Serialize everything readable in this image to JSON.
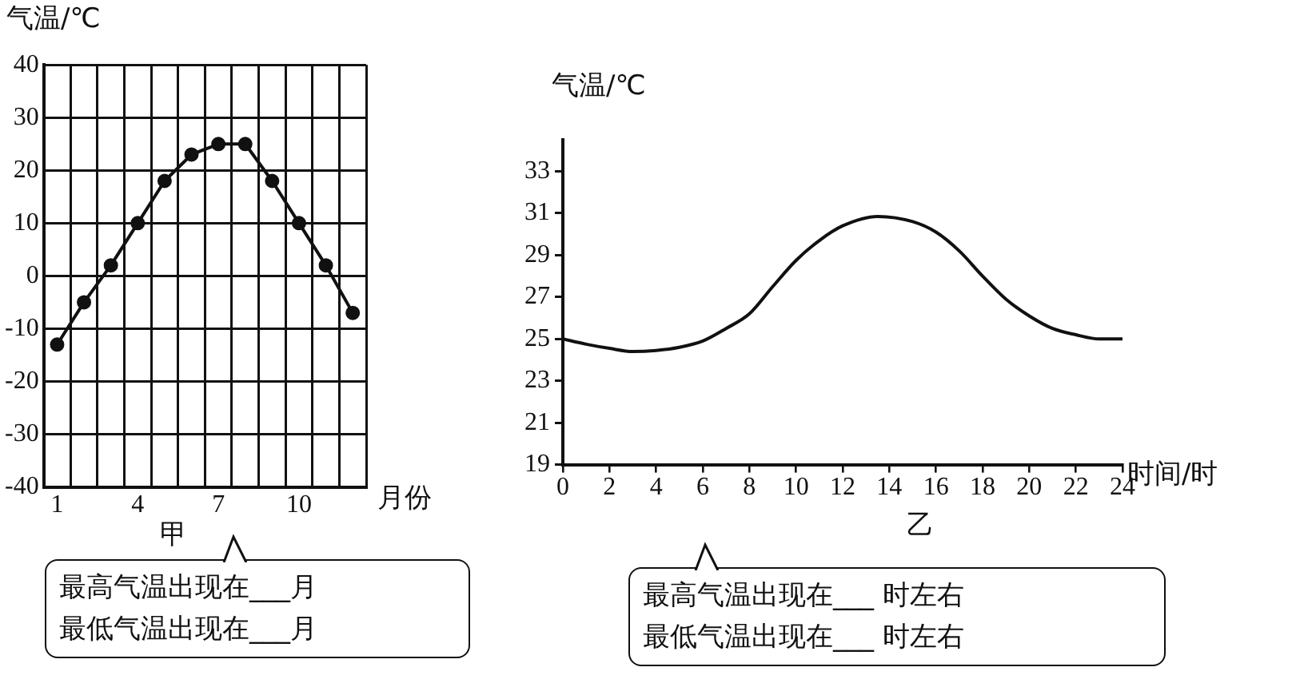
{
  "chart_data": [
    {
      "type": "line",
      "ylabel": "气温/℃",
      "xlabel": "月份",
      "categories": [
        "1",
        null,
        null,
        "4",
        null,
        null,
        "7",
        null,
        null,
        "10",
        null,
        null
      ],
      "values": [
        -13,
        -5,
        2,
        10,
        18,
        23,
        25,
        25,
        18,
        10,
        2,
        -7
      ],
      "color": "#111111",
      "marker": "circle",
      "ylim": [
        -40,
        40
      ],
      "yticks": [
        -40,
        -30,
        -20,
        -10,
        0,
        10,
        20,
        30,
        40
      ],
      "grid": true,
      "annotations": [
        "甲",
        "最高气温出现在___月",
        "最低气温出现在___月"
      ]
    },
    {
      "type": "line",
      "ylabel": "气温/℃",
      "xlabel": "时间/时",
      "x": [
        0,
        1,
        2,
        3,
        4,
        5,
        6,
        7,
        8,
        9,
        10,
        11,
        12,
        13.5,
        15,
        16,
        17,
        18,
        19,
        20,
        21,
        22,
        23,
        24
      ],
      "values": [
        25.0,
        24.75,
        24.55,
        24.4,
        24.45,
        24.6,
        24.9,
        25.5,
        26.2,
        27.5,
        28.75,
        29.7,
        30.4,
        30.85,
        30.6,
        30.1,
        29.2,
        28.0,
        26.9,
        26.1,
        25.5,
        25.2,
        25.0,
        25.0
      ],
      "color": "#111111",
      "xlim": [
        0,
        24
      ],
      "xticks": [
        0,
        2,
        4,
        6,
        8,
        10,
        12,
        14,
        16,
        18,
        20,
        22,
        24
      ],
      "ylim": [
        19,
        34.5
      ],
      "yticks": [
        19,
        21,
        23,
        25,
        27,
        29,
        31,
        33
      ],
      "annotations": [
        "乙",
        "最高气温出现在___ 时左右",
        "最低气温出现在___ 时左右"
      ]
    }
  ]
}
